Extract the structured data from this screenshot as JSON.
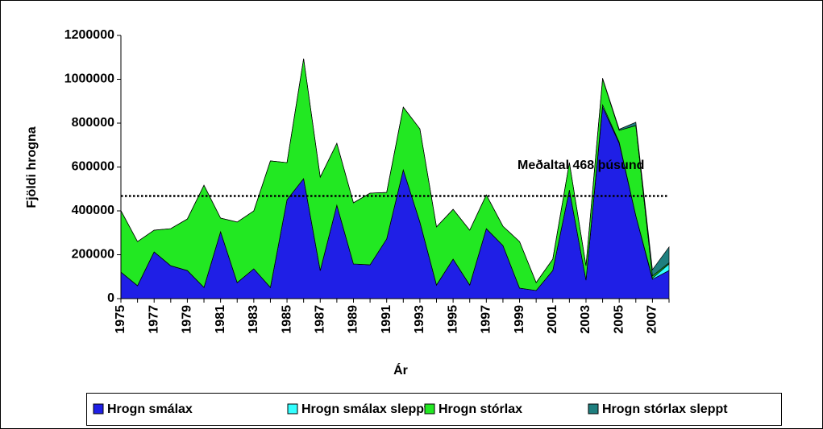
{
  "chart_data": {
    "type": "stacked_area",
    "x_label": "Ár",
    "y_label": "Fjöldi hrogna",
    "annotation": "Meðaltal 468 þúsund",
    "mean_line": 468000,
    "categories": [
      "1975",
      null,
      "1977",
      null,
      "1979",
      null,
      "1981",
      null,
      "1983",
      null,
      "1985",
      null,
      "1987",
      null,
      "1989",
      null,
      "1991",
      null,
      "1993",
      null,
      "1995",
      null,
      "1997",
      null,
      "1999",
      null,
      "2001",
      null,
      "2003",
      null,
      "2005",
      null,
      "2007",
      null
    ],
    "series": [
      {
        "name": "Hrogn smálax",
        "color": "#1f1fe6",
        "values": [
          121000,
          59000,
          213000,
          150000,
          128000,
          51000,
          305000,
          73000,
          136000,
          51000,
          451000,
          547000,
          128000,
          426000,
          158000,
          154000,
          272000,
          587000,
          349000,
          62000,
          180000,
          62000,
          319000,
          242000,
          48000,
          37000,
          128000,
          495000,
          84000,
          873000,
          708000,
          378000,
          88000,
          128000
        ]
      },
      {
        "name": "Hrogn smálax sleppt",
        "color": "#33ffff",
        "values": [
          0,
          0,
          0,
          0,
          0,
          0,
          0,
          0,
          0,
          0,
          0,
          0,
          0,
          0,
          0,
          0,
          0,
          0,
          0,
          0,
          0,
          0,
          0,
          0,
          0,
          0,
          0,
          0,
          0,
          10000,
          5000,
          0,
          5000,
          30000
        ]
      },
      {
        "name": "Hrogn stórlax",
        "color": "#22e822",
        "values": [
          280000,
          201000,
          99000,
          169000,
          235000,
          466000,
          62000,
          276000,
          264000,
          577000,
          169000,
          547000,
          426000,
          282000,
          279000,
          327000,
          212000,
          286000,
          425000,
          265000,
          227000,
          250000,
          154000,
          88000,
          212000,
          36000,
          52000,
          125000,
          66000,
          119000,
          54000,
          411000,
          10000,
          5000
        ]
      },
      {
        "name": "Hrogn stórlax sleppt",
        "color": "#1f7f7f",
        "values": [
          0,
          0,
          0,
          0,
          0,
          0,
          0,
          0,
          0,
          0,
          0,
          0,
          0,
          0,
          0,
          0,
          0,
          0,
          0,
          0,
          0,
          0,
          0,
          0,
          0,
          0,
          0,
          0,
          0,
          3000,
          5000,
          15000,
          29000,
          72000
        ]
      }
    ],
    "ylim": [
      0,
      1200000
    ],
    "yticks": [
      0,
      200000,
      400000,
      600000,
      800000,
      1000000,
      1200000
    ]
  }
}
